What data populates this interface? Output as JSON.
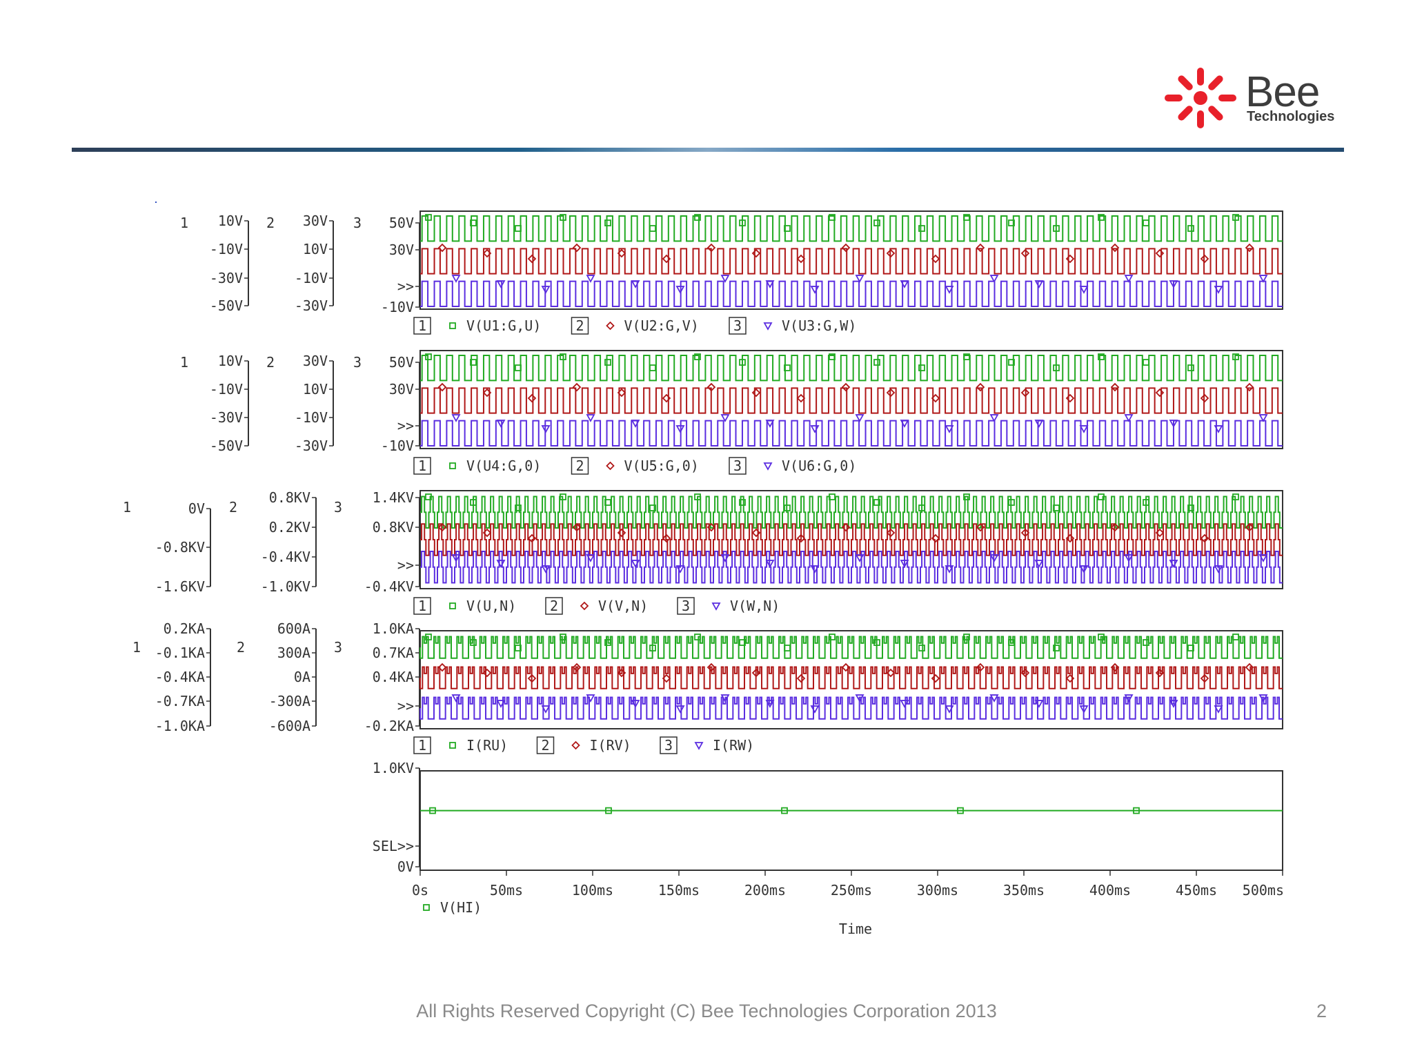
{
  "slide": {
    "copyright": "All Rights Reserved Copyright (C) Bee Technologies Corporation 2013",
    "page_number": "2"
  },
  "logo": {
    "word": "Bee",
    "sub": "Technologies",
    "brand_color": "#e8202a"
  },
  "colors": {
    "trace1": "#22aa22",
    "trace2": "#b01818",
    "trace3": "#5a2de0",
    "axis": "#333333"
  },
  "chart_data": [
    {
      "type": "line",
      "legend": [
        {
          "index": "1",
          "marker": "square",
          "label": "V(U1:G,U)"
        },
        {
          "index": "2",
          "marker": "diamond",
          "label": "V(U2:G,V)"
        },
        {
          "index": "3",
          "marker": "triangle",
          "label": "V(U3:G,W)"
        }
      ],
      "axes": [
        {
          "index": "1",
          "ticks": [
            "10V",
            "-10V",
            "-30V",
            "-50V"
          ]
        },
        {
          "index": "2",
          "ticks": [
            "30V",
            "10V",
            "-10V",
            "-30V"
          ]
        },
        {
          "index": "3",
          "ticks": [
            "50V",
            "30V",
            ">>",
            "-10V"
          ]
        }
      ],
      "series": [
        {
          "index": "1",
          "pattern": "square_pulse",
          "periods": 70,
          "level_high": 10,
          "level_low": -10
        },
        {
          "index": "2",
          "pattern": "square_pulse",
          "periods": 70,
          "level_high": 10,
          "level_low": -10
        },
        {
          "index": "3",
          "pattern": "square_pulse",
          "periods": 70,
          "level_high": 10,
          "level_low": -10
        }
      ],
      "xlim": [
        0,
        500
      ]
    },
    {
      "type": "line",
      "legend": [
        {
          "index": "1",
          "marker": "square",
          "label": "V(U4:G,0)"
        },
        {
          "index": "2",
          "marker": "diamond",
          "label": "V(U5:G,0)"
        },
        {
          "index": "3",
          "marker": "triangle",
          "label": "V(U6:G,0)"
        }
      ],
      "axes": [
        {
          "index": "1",
          "ticks": [
            "10V",
            "-10V",
            "-30V",
            "-50V"
          ]
        },
        {
          "index": "2",
          "ticks": [
            "30V",
            "10V",
            "-10V",
            "-30V"
          ]
        },
        {
          "index": "3",
          "ticks": [
            "50V",
            "30V",
            ">>",
            "-10V"
          ]
        }
      ],
      "series": [
        {
          "index": "1",
          "pattern": "square_pulse",
          "periods": 70,
          "level_high": 10,
          "level_low": -10
        },
        {
          "index": "2",
          "pattern": "square_pulse",
          "periods": 70,
          "level_high": 10,
          "level_low": -10
        },
        {
          "index": "3",
          "pattern": "square_pulse",
          "periods": 70,
          "level_high": 10,
          "level_low": -10
        }
      ],
      "xlim": [
        0,
        500
      ]
    },
    {
      "type": "line",
      "legend": [
        {
          "index": "1",
          "marker": "square",
          "label": "V(U,N)"
        },
        {
          "index": "2",
          "marker": "diamond",
          "label": "V(V,N)"
        },
        {
          "index": "3",
          "marker": "triangle",
          "label": "V(W,N)"
        }
      ],
      "axes": [
        {
          "index": "1",
          "ticks": [
            "0V",
            "-0.8KV",
            "-1.6KV"
          ]
        },
        {
          "index": "2",
          "ticks": [
            "0.8KV",
            "0.2KV",
            "-0.4KV",
            "-1.0KV"
          ]
        },
        {
          "index": "3",
          "ticks": [
            "1.4KV",
            "0.8KV",
            ">>",
            "-0.4KV"
          ]
        }
      ],
      "series": [
        {
          "index": "1",
          "pattern": "six_step",
          "periods": 100
        },
        {
          "index": "2",
          "pattern": "six_step",
          "periods": 100
        },
        {
          "index": "3",
          "pattern": "six_step",
          "periods": 100
        }
      ],
      "xlim": [
        0,
        500
      ]
    },
    {
      "type": "line",
      "legend": [
        {
          "index": "1",
          "marker": "square",
          "label": "I(RU)"
        },
        {
          "index": "2",
          "marker": "diamond",
          "label": "I(RV)"
        },
        {
          "index": "3",
          "marker": "triangle",
          "label": "I(RW)"
        }
      ],
      "axes": [
        {
          "index": "1",
          "ticks": [
            "0.2KA",
            "-0.1KA",
            "-0.4KA",
            "-0.7KA",
            "-1.0KA"
          ]
        },
        {
          "index": "2",
          "ticks": [
            "600A",
            "300A",
            "0A",
            "-300A",
            "-600A"
          ]
        },
        {
          "index": "3",
          "ticks": [
            "1.0KA",
            "0.7KA",
            "0.4KA",
            ">>",
            "-0.2KA"
          ]
        }
      ],
      "series": [
        {
          "index": "1",
          "pattern": "stepped_pulse",
          "periods": 75
        },
        {
          "index": "2",
          "pattern": "stepped_pulse",
          "periods": 75
        },
        {
          "index": "3",
          "pattern": "stepped_pulse",
          "periods": 75
        }
      ],
      "xlim": [
        0,
        500
      ]
    },
    {
      "type": "line",
      "legend": [
        {
          "marker": "square",
          "label": "V(HI)"
        }
      ],
      "axes": [
        {
          "ticks": [
            "1.0KV",
            "SEL>>",
            "0V"
          ]
        }
      ],
      "series": [
        {
          "label": "V(HI)",
          "x": [
            0,
            500
          ],
          "y": [
            0.6,
            0.6
          ]
        }
      ],
      "ylim": [
        0,
        1
      ],
      "xlim": [
        0,
        500
      ],
      "x_ticks": [
        "0s",
        "50ms",
        "100ms",
        "150ms",
        "200ms",
        "250ms",
        "300ms",
        "350ms",
        "400ms",
        "450ms",
        "500ms"
      ],
      "xlabel": "Time"
    }
  ]
}
